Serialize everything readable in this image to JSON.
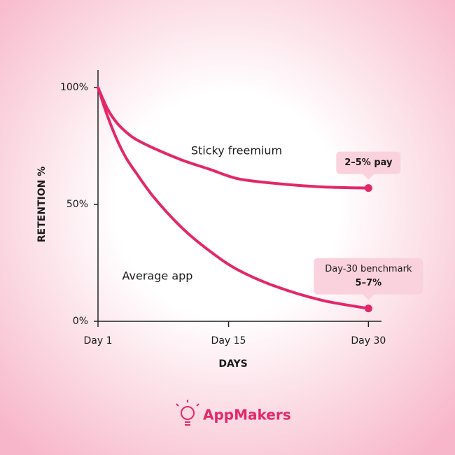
{
  "chart_data": {
    "type": "line",
    "x": [
      1,
      2,
      3,
      4,
      5,
      7,
      10,
      13,
      16,
      20,
      25,
      30
    ],
    "series": [
      {
        "name": "Sticky freemium",
        "color": "#e3286a",
        "values": [
          100,
          91,
          85,
          81,
          78,
          74,
          69,
          65,
          61,
          59,
          57.5,
          57
        ]
      },
      {
        "name": "Average app",
        "color": "#e3286a",
        "values": [
          100,
          88,
          78,
          70,
          64,
          53,
          40,
          30,
          22,
          15,
          9,
          5.5
        ]
      }
    ],
    "xlabel": "DAYS",
    "ylabel": "RETENTION %",
    "xlim": [
      1,
      31.4
    ],
    "ylim": [
      0,
      107.5
    ],
    "xticks": [
      {
        "value": 1,
        "label": "Day 1"
      },
      {
        "value": 15,
        "label": "Day 15"
      },
      {
        "value": 30,
        "label": "Day 30"
      }
    ],
    "yticks": [
      {
        "value": 0,
        "label": "0%"
      },
      {
        "value": 50,
        "label": "50%"
      },
      {
        "value": 100,
        "label": "100%"
      }
    ],
    "callouts": [
      {
        "text": "2–5% pay"
      },
      {
        "text": "Day-30 benchmark",
        "emphasis": "5–7%"
      }
    ],
    "brand": "AppMakers"
  }
}
